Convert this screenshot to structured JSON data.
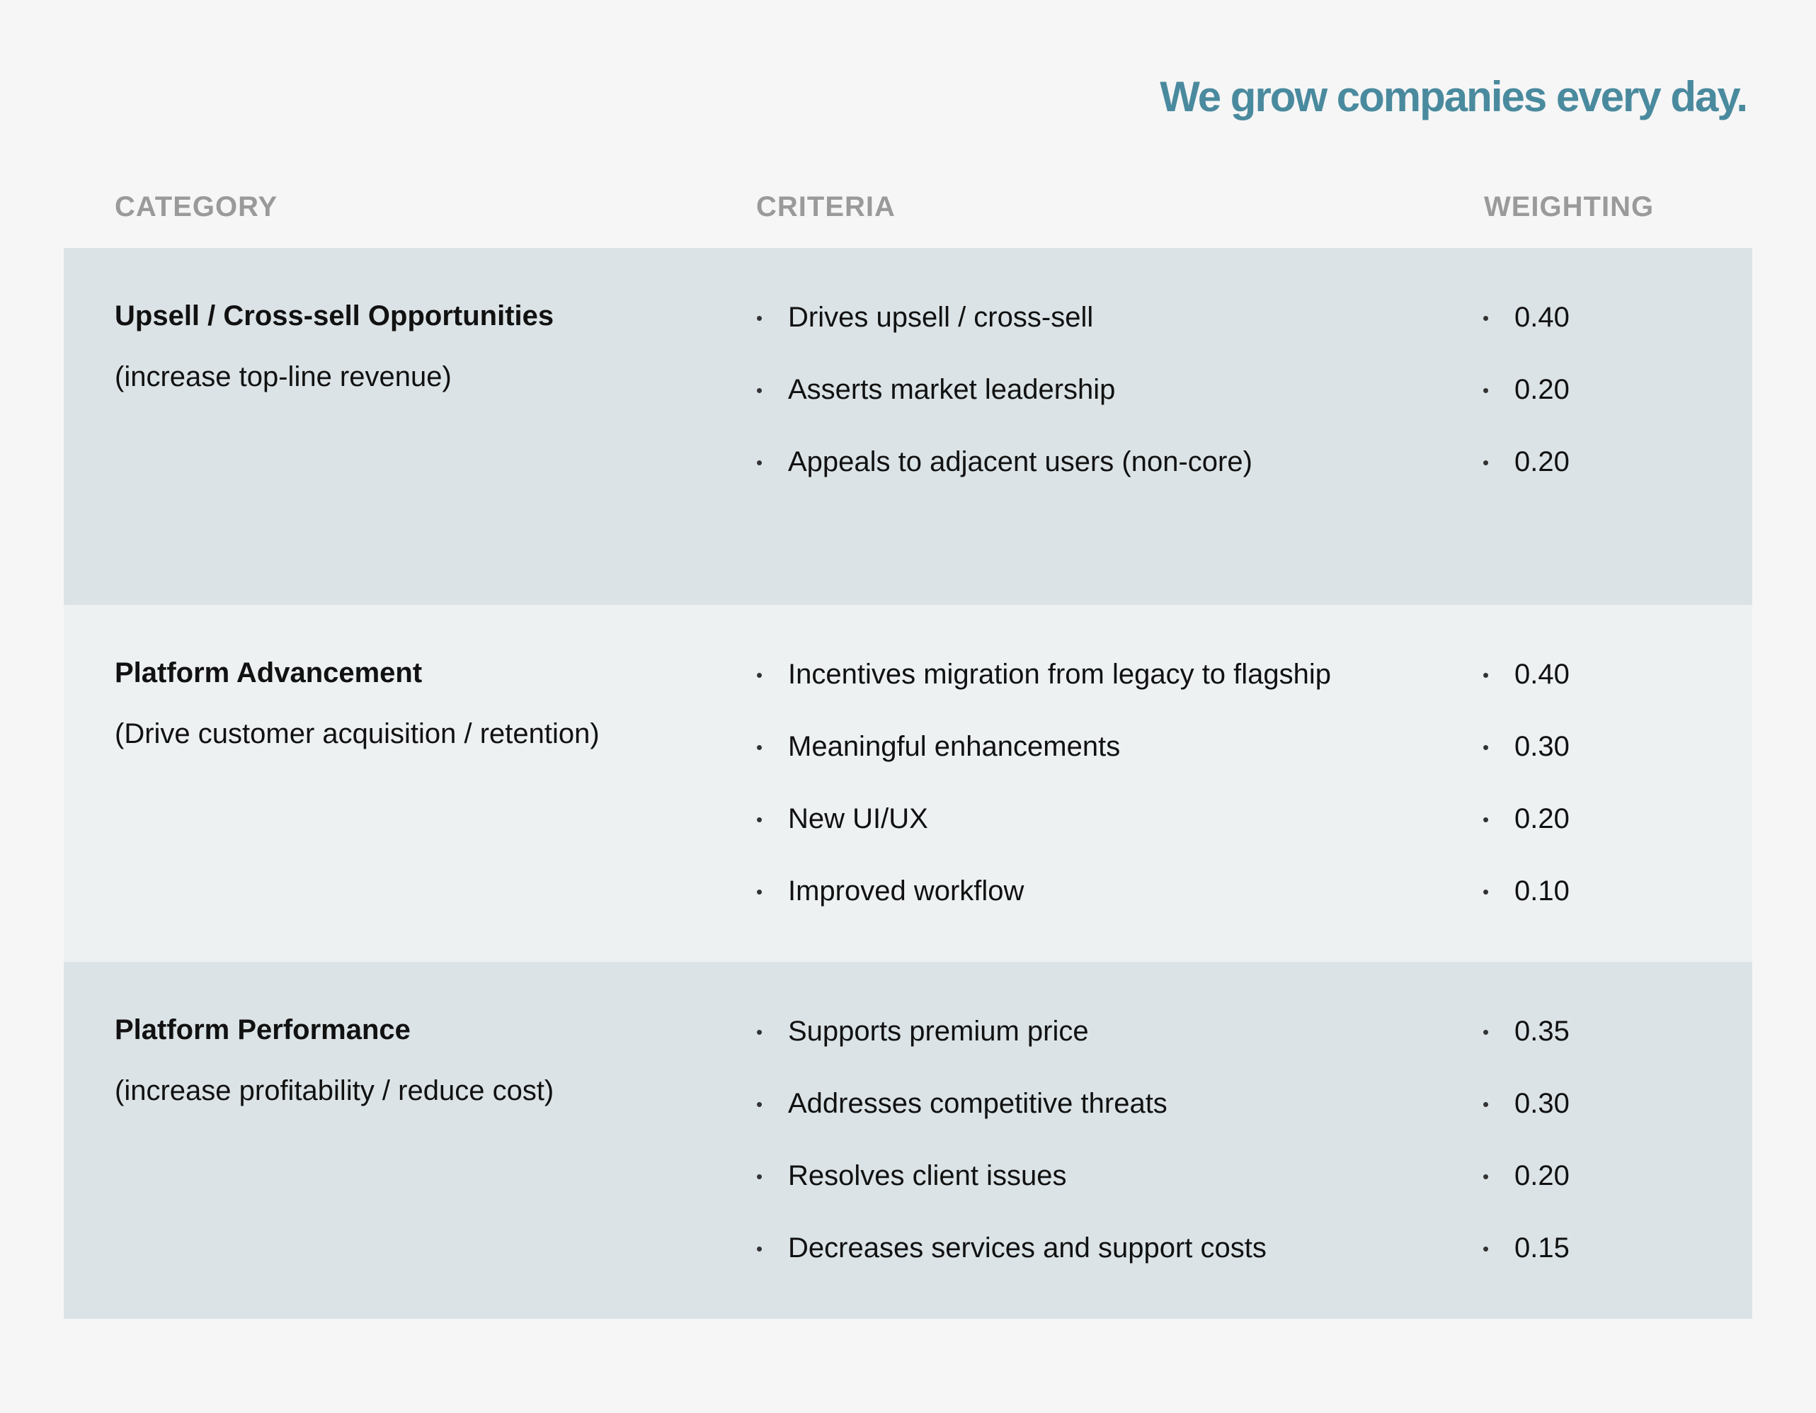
{
  "header": {
    "title": "We grow companies every day."
  },
  "table": {
    "columns": [
      "CATEGORY",
      "CRITERIA",
      "WEIGHTING"
    ],
    "rows": [
      {
        "category": "Upsell / Cross-sell Opportunities",
        "note": "(increase top-line revenue)",
        "criteria": [
          "Drives upsell / cross-sell",
          "Asserts market leadership",
          "Appeals to adjacent users (non-core)"
        ],
        "weights": [
          "0.40",
          "0.20",
          "0.20"
        ]
      },
      {
        "category": "Platform Advancement",
        "note": "(Drive customer acquisition / retention)",
        "criteria": [
          "Incentives migration from legacy to flagship",
          "Meaningful enhancements",
          "New UI/UX",
          "Improved workflow"
        ],
        "weights": [
          "0.40",
          "0.30",
          "0.20",
          "0.10"
        ]
      },
      {
        "category": "Platform Performance",
        "note": "(increase profitability / reduce cost)",
        "criteria": [
          "Supports premium price",
          "Addresses competitive threats",
          "Resolves client issues",
          "Decreases services and support costs"
        ],
        "weights": [
          "0.35",
          "0.30",
          "0.20",
          "0.15"
        ]
      }
    ]
  }
}
